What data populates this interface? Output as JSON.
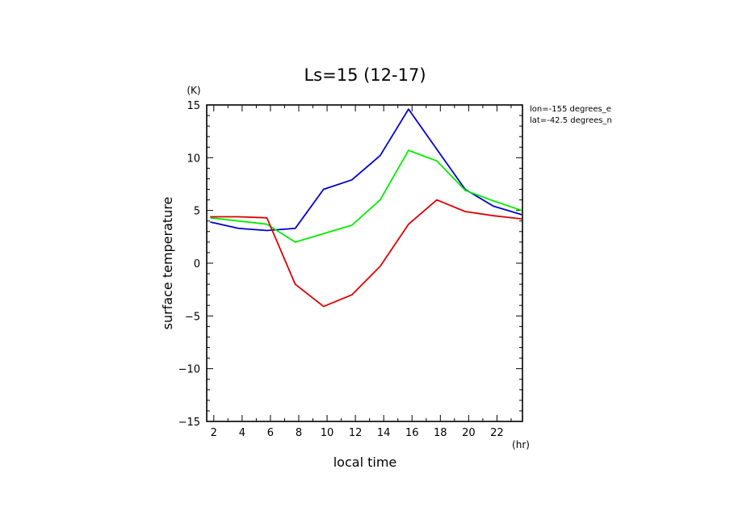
{
  "chart_data": {
    "type": "line",
    "title": "Ls=15 (12-17)",
    "xlabel": "local time",
    "ylabel": "surface temperature",
    "x_unit": "(hr)",
    "y_unit": "(K)",
    "xlim": [
      1.5,
      23.8
    ],
    "ylim": [
      -15,
      15
    ],
    "x_ticks": [
      2,
      4,
      6,
      8,
      10,
      12,
      14,
      16,
      18,
      20,
      22
    ],
    "y_ticks": [
      -15,
      -10,
      -5,
      0,
      5,
      10,
      15
    ],
    "x": [
      1.75,
      3.75,
      5.75,
      7.75,
      9.75,
      11.75,
      13.75,
      15.75,
      17.75,
      19.75,
      21.75,
      23.75
    ],
    "annotations": [
      "lon=-155 degrees_e",
      "lat=-42.5 degrees_n"
    ],
    "grid": false,
    "series": [
      {
        "color": "#0000cc",
        "values": [
          3.9,
          3.3,
          3.1,
          3.3,
          7.0,
          7.9,
          10.2,
          14.6,
          10.8,
          7.0,
          5.4,
          4.6
        ]
      },
      {
        "color": "#00ee00",
        "values": [
          4.3,
          4.0,
          3.7,
          2.0,
          2.8,
          3.6,
          6.0,
          10.7,
          9.7,
          6.9,
          5.9,
          5.0
        ]
      },
      {
        "color": "#dd0000",
        "values": [
          4.4,
          4.4,
          4.3,
          -2.0,
          -4.1,
          -3.0,
          -0.3,
          3.7,
          6.0,
          4.9,
          4.5,
          4.2
        ]
      }
    ]
  }
}
